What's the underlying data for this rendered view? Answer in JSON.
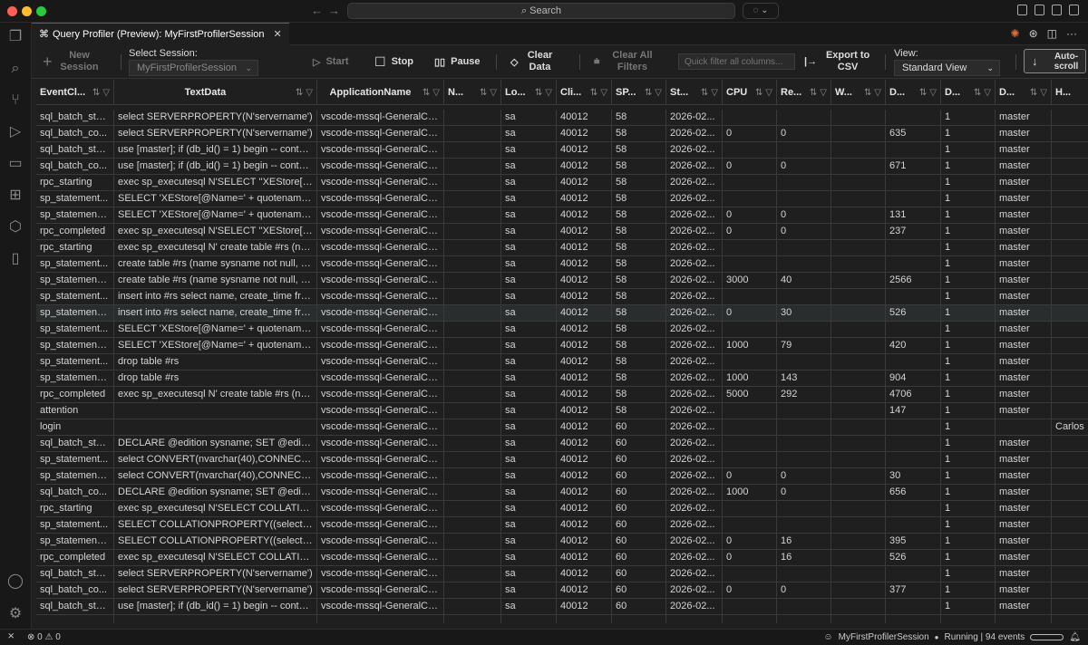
{
  "titlebar": {
    "search": "Search"
  },
  "tab": {
    "title": "Query Profiler (Preview): MyFirstProfilerSession"
  },
  "toolbar": {
    "new_session": "New Session",
    "select_session_label": "Select Session:",
    "session_value": "MyFirstProfilerSession",
    "start": "Start",
    "stop": "Stop",
    "pause": "Pause",
    "clear_data": "Clear Data",
    "clear_filters": "Clear All Filters",
    "quick_filter_placeholder": "Quick filter all columns...",
    "export": "Export to CSV",
    "view_label": "View:",
    "view_value": "Standard View",
    "autoscroll": "Auto-scroll"
  },
  "columns": [
    "EventCl...",
    "TextData",
    "ApplicationName",
    "N...",
    "Lo...",
    "Cli...",
    "SP...",
    "St...",
    "CPU",
    "Re...",
    "W...",
    "D...",
    "D...",
    "D...",
    "H..."
  ],
  "rows": [
    [
      "sql_batch_sta...",
      "select SERVERPROPERTY(N'servername')",
      "vscode-mssql-GeneralCo...",
      "",
      "sa",
      "40012",
      "58",
      "2026-02...",
      "",
      "",
      "",
      "",
      "1",
      "master",
      ""
    ],
    [
      "sql_batch_co...",
      "select SERVERPROPERTY(N'servername')",
      "vscode-mssql-GeneralCo...",
      "",
      "sa",
      "40012",
      "58",
      "2026-02...",
      "0",
      "0",
      "",
      "635",
      "1",
      "master",
      ""
    ],
    [
      "sql_batch_sta...",
      "use [master]; if (db_id() = 1) begin -- contai...",
      "vscode-mssql-GeneralCo...",
      "",
      "sa",
      "40012",
      "58",
      "2026-02...",
      "",
      "",
      "",
      "",
      "1",
      "master",
      ""
    ],
    [
      "sql_batch_co...",
      "use [master]; if (db_id() = 1) begin -- contai...",
      "vscode-mssql-GeneralCo...",
      "",
      "sa",
      "40012",
      "58",
      "2026-02...",
      "0",
      "0",
      "",
      "671",
      "1",
      "master",
      ""
    ],
    [
      "rpc_starting",
      "exec sp_executesql N'SELECT ''XEStore[@...",
      "vscode-mssql-GeneralCo...",
      "",
      "sa",
      "40012",
      "58",
      "2026-02...",
      "",
      "",
      "",
      "",
      "1",
      "master",
      ""
    ],
    [
      "sp_statement...",
      "SELECT 'XEStore[@Name=' + quotename(C...",
      "vscode-mssql-GeneralCo...",
      "",
      "sa",
      "40012",
      "58",
      "2026-02...",
      "",
      "",
      "",
      "",
      "1",
      "master",
      ""
    ],
    [
      "sp_statement_...",
      "SELECT 'XEStore[@Name=' + quotename(C...",
      "vscode-mssql-GeneralCo...",
      "",
      "sa",
      "40012",
      "58",
      "2026-02...",
      "0",
      "0",
      "",
      "131",
      "1",
      "master",
      ""
    ],
    [
      "rpc_completed",
      "exec sp_executesql N'SELECT ''XEStore[@...",
      "vscode-mssql-GeneralCo...",
      "",
      "sa",
      "40012",
      "58",
      "2026-02...",
      "0",
      "0",
      "",
      "237",
      "1",
      "master",
      ""
    ],
    [
      "rpc_starting",
      "exec sp_executesql N' create table #rs (nam...",
      "vscode-mssql-GeneralCo...",
      "",
      "sa",
      "40012",
      "58",
      "2026-02...",
      "",
      "",
      "",
      "",
      "1",
      "master",
      ""
    ],
    [
      "sp_statement...",
      "create table #rs (name sysname not null, cre...",
      "vscode-mssql-GeneralCo...",
      "",
      "sa",
      "40012",
      "58",
      "2026-02...",
      "",
      "",
      "",
      "",
      "1",
      "master",
      ""
    ],
    [
      "sp_statement_...",
      "create table #rs (name sysname not null, cre...",
      "vscode-mssql-GeneralCo...",
      "",
      "sa",
      "40012",
      "58",
      "2026-02...",
      "3000",
      "40",
      "",
      "2566",
      "1",
      "master",
      ""
    ],
    [
      "sp_statement...",
      "insert into #rs select name, create_time fro...",
      "vscode-mssql-GeneralCo...",
      "",
      "sa",
      "40012",
      "58",
      "2026-02...",
      "",
      "",
      "",
      "",
      "1",
      "master",
      ""
    ],
    [
      "sp_statement_...",
      "insert into #rs select name, create_time fro...",
      "vscode-mssql-GeneralCo...",
      "",
      "sa",
      "40012",
      "58",
      "2026-02...",
      "0",
      "30",
      "",
      "526",
      "1",
      "master",
      ""
    ],
    [
      "sp_statement...",
      "SELECT 'XEStore[@Name=' + quotename(C...",
      "vscode-mssql-GeneralCo...",
      "",
      "sa",
      "40012",
      "58",
      "2026-02...",
      "",
      "",
      "",
      "",
      "1",
      "master",
      ""
    ],
    [
      "sp_statement_...",
      "SELECT 'XEStore[@Name=' + quotename(C...",
      "vscode-mssql-GeneralCo...",
      "",
      "sa",
      "40012",
      "58",
      "2026-02...",
      "1000",
      "79",
      "",
      "420",
      "1",
      "master",
      ""
    ],
    [
      "sp_statement...",
      "drop table #rs",
      "vscode-mssql-GeneralCo...",
      "",
      "sa",
      "40012",
      "58",
      "2026-02...",
      "",
      "",
      "",
      "",
      "1",
      "master",
      ""
    ],
    [
      "sp_statement_...",
      "drop table #rs",
      "vscode-mssql-GeneralCo...",
      "",
      "sa",
      "40012",
      "58",
      "2026-02...",
      "1000",
      "143",
      "",
      "904",
      "1",
      "master",
      ""
    ],
    [
      "rpc_completed",
      "exec sp_executesql N' create table #rs (nam...",
      "vscode-mssql-GeneralCo...",
      "",
      "sa",
      "40012",
      "58",
      "2026-02...",
      "5000",
      "292",
      "",
      "4706",
      "1",
      "master",
      ""
    ],
    [
      "attention",
      "",
      "vscode-mssql-GeneralCo...",
      "",
      "sa",
      "40012",
      "58",
      "2026-02...",
      "",
      "",
      "",
      "147",
      "1",
      "master",
      ""
    ],
    [
      "login",
      "",
      "vscode-mssql-GeneralCo...",
      "",
      "sa",
      "40012",
      "60",
      "2026-02...",
      "",
      "",
      "",
      "",
      "1",
      "",
      "Carlos"
    ],
    [
      "sql_batch_sta...",
      "DECLARE @edition sysname; SET @edition ...",
      "vscode-mssql-GeneralCo...",
      "",
      "sa",
      "40012",
      "60",
      "2026-02...",
      "",
      "",
      "",
      "",
      "1",
      "master",
      ""
    ],
    [
      "sp_statement...",
      "select CONVERT(nvarchar(40),CONNECTIO...",
      "vscode-mssql-GeneralCo...",
      "",
      "sa",
      "40012",
      "60",
      "2026-02...",
      "",
      "",
      "",
      "",
      "1",
      "master",
      ""
    ],
    [
      "sp_statement_...",
      "select CONVERT(nvarchar(40),CONNECTIO...",
      "vscode-mssql-GeneralCo...",
      "",
      "sa",
      "40012",
      "60",
      "2026-02...",
      "0",
      "0",
      "",
      "30",
      "1",
      "master",
      ""
    ],
    [
      "sql_batch_co...",
      "DECLARE @edition sysname; SET @edition ...",
      "vscode-mssql-GeneralCo...",
      "",
      "sa",
      "40012",
      "60",
      "2026-02...",
      "1000",
      "0",
      "",
      "656",
      "1",
      "master",
      ""
    ],
    [
      "rpc_starting",
      "exec sp_executesql N'SELECT COLLATIONP...",
      "vscode-mssql-GeneralCo...",
      "",
      "sa",
      "40012",
      "60",
      "2026-02...",
      "",
      "",
      "",
      "",
      "1",
      "master",
      ""
    ],
    [
      "sp_statement...",
      "SELECT COLLATIONPROPERTY((select coll...",
      "vscode-mssql-GeneralCo...",
      "",
      "sa",
      "40012",
      "60",
      "2026-02...",
      "",
      "",
      "",
      "",
      "1",
      "master",
      ""
    ],
    [
      "sp_statement_...",
      "SELECT COLLATIONPROPERTY((select coll...",
      "vscode-mssql-GeneralCo...",
      "",
      "sa",
      "40012",
      "60",
      "2026-02...",
      "0",
      "16",
      "",
      "395",
      "1",
      "master",
      ""
    ],
    [
      "rpc_completed",
      "exec sp_executesql N'SELECT COLLATIONP...",
      "vscode-mssql-GeneralCo...",
      "",
      "sa",
      "40012",
      "60",
      "2026-02...",
      "0",
      "16",
      "",
      "526",
      "1",
      "master",
      ""
    ],
    [
      "sql_batch_sta...",
      "select SERVERPROPERTY(N'servername')",
      "vscode-mssql-GeneralCo...",
      "",
      "sa",
      "40012",
      "60",
      "2026-02...",
      "",
      "",
      "",
      "",
      "1",
      "master",
      ""
    ],
    [
      "sql_batch_co...",
      "select SERVERPROPERTY(N'servername')",
      "vscode-mssql-GeneralCo...",
      "",
      "sa",
      "40012",
      "60",
      "2026-02...",
      "0",
      "0",
      "",
      "377",
      "1",
      "master",
      ""
    ],
    [
      "sql_batch_sta...",
      "use [master]; if (db_id() = 1) begin -- contai...",
      "vscode-mssql-GeneralCo...",
      "",
      "sa",
      "40012",
      "60",
      "2026-02...",
      "",
      "",
      "",
      "",
      "1",
      "master",
      ""
    ]
  ],
  "selected_row": 12,
  "status": {
    "errors": "0",
    "warnings": "0",
    "session": "MyFirstProfilerSession",
    "state": "Running | 94 events"
  },
  "colors": {
    "accent": "#0078d4",
    "background": "#1f1f1f",
    "selected_row": "#2a2d2e"
  }
}
